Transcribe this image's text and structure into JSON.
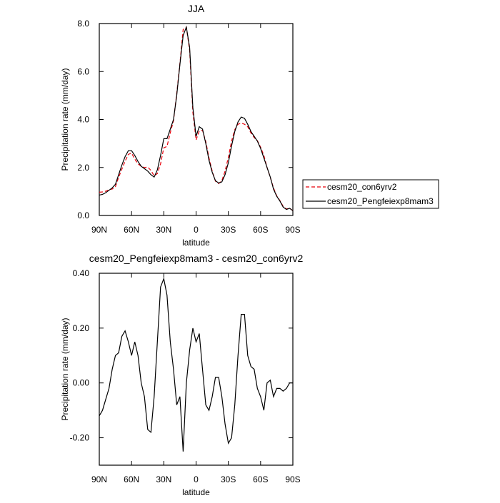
{
  "chart_data": [
    {
      "type": "line",
      "title": "JJA",
      "xlabel": "latitude",
      "ylabel": "Precipitation rate (mm/day)",
      "x": [
        90,
        87,
        84,
        81,
        78,
        75,
        72,
        69,
        66,
        63,
        60,
        57,
        54,
        51,
        48,
        45,
        42,
        39,
        36,
        33,
        30,
        27,
        24,
        21,
        18,
        15,
        12,
        9,
        6,
        3,
        0,
        -3,
        -6,
        -9,
        -12,
        -15,
        -18,
        -21,
        -24,
        -27,
        -30,
        -33,
        -36,
        -39,
        -42,
        -45,
        -48,
        -51,
        -54,
        -57,
        -60,
        -63,
        -66,
        -69,
        -72,
        -75,
        -78,
        -81,
        -84,
        -87,
        -90
      ],
      "series": [
        {
          "name": "cesm20_con6yrv2",
          "color": "#e8000b",
          "line_style": "dashed",
          "values": [
            0.97,
            0.98,
            1.01,
            1.07,
            1.1,
            1.2,
            1.59,
            1.93,
            2.26,
            2.55,
            2.6,
            2.35,
            2.15,
            2.05,
            2.0,
            2.02,
            1.88,
            1.65,
            1.75,
            2.15,
            2.82,
            2.88,
            3.45,
            3.95,
            5.08,
            6.35,
            7.75,
            7.85,
            6.88,
            4.3,
            3.15,
            3.52,
            3.55,
            3.08,
            2.4,
            1.85,
            1.43,
            1.33,
            1.45,
            1.85,
            2.42,
            3.1,
            3.58,
            3.8,
            3.85,
            3.8,
            3.7,
            3.44,
            3.25,
            3.12,
            2.85,
            2.5,
            2.0,
            1.59,
            1.15,
            0.82,
            0.62,
            0.38,
            0.27,
            0.3,
            0.2
          ]
        },
        {
          "name": "cesm20_Pengfeiexp8mam3",
          "color": "#000000",
          "line_style": "solid",
          "values": [
            0.85,
            0.88,
            0.95,
            1.05,
            1.15,
            1.3,
            1.7,
            2.1,
            2.45,
            2.7,
            2.7,
            2.5,
            2.25,
            2.05,
            1.95,
            1.85,
            1.7,
            1.6,
            1.9,
            2.5,
            3.2,
            3.2,
            3.6,
            4.0,
            5.0,
            6.3,
            7.5,
            7.85,
            7.0,
            4.5,
            3.3,
            3.7,
            3.6,
            3.0,
            2.3,
            1.8,
            1.45,
            1.35,
            1.4,
            1.7,
            2.2,
            2.9,
            3.5,
            3.9,
            4.1,
            4.05,
            3.8,
            3.5,
            3.3,
            3.1,
            2.8,
            2.4,
            2.0,
            1.6,
            1.1,
            0.8,
            0.6,
            0.35,
            0.25,
            0.3,
            0.2
          ]
        }
      ],
      "xlim": [
        90,
        -90
      ],
      "xticks": [
        {
          "value": 90,
          "label": "90N"
        },
        {
          "value": 60,
          "label": "60N"
        },
        {
          "value": 30,
          "label": "30N"
        },
        0,
        {
          "value": -30,
          "label": "30S"
        },
        {
          "value": -60,
          "label": "60S"
        },
        {
          "value": -90,
          "label": "90S"
        }
      ],
      "ylim": [
        0,
        8
      ],
      "yticks": [
        {
          "value": 0,
          "label": "0.0"
        },
        {
          "value": 2,
          "label": "2.0"
        },
        {
          "value": 4,
          "label": "4.0"
        },
        {
          "value": 6,
          "label": "6.0"
        },
        {
          "value": 8,
          "label": "8.0"
        }
      ],
      "legend": "right"
    },
    {
      "type": "line",
      "title": "cesm20_Pengfeiexp8mam3 - cesm20_con6yrv2",
      "xlabel": "latitude",
      "ylabel": "Precipitation rate (mm/day)",
      "x": [
        90,
        87,
        84,
        81,
        78,
        75,
        72,
        69,
        66,
        63,
        60,
        57,
        54,
        51,
        48,
        45,
        42,
        39,
        36,
        33,
        30,
        27,
        24,
        21,
        18,
        15,
        12,
        9,
        6,
        3,
        0,
        -3,
        -6,
        -9,
        -12,
        -15,
        -18,
        -21,
        -24,
        -27,
        -30,
        -33,
        -36,
        -39,
        -42,
        -45,
        -48,
        -51,
        -54,
        -57,
        -60,
        -63,
        -66,
        -69,
        -72,
        -75,
        -78,
        -81,
        -84,
        -87,
        -90
      ],
      "values": [
        -0.12,
        -0.1,
        -0.06,
        -0.02,
        0.05,
        0.1,
        0.11,
        0.17,
        0.19,
        0.15,
        0.1,
        0.15,
        0.1,
        0.0,
        -0.05,
        -0.17,
        -0.18,
        -0.05,
        0.15,
        0.35,
        0.38,
        0.32,
        0.15,
        0.05,
        -0.08,
        -0.05,
        -0.25,
        0.0,
        0.12,
        0.2,
        0.15,
        0.18,
        0.05,
        -0.08,
        -0.1,
        -0.05,
        0.02,
        0.02,
        -0.05,
        -0.15,
        -0.22,
        -0.2,
        -0.08,
        0.1,
        0.25,
        0.25,
        0.1,
        0.06,
        0.05,
        -0.02,
        -0.05,
        -0.1,
        0.0,
        0.01,
        -0.05,
        -0.02,
        -0.02,
        -0.03,
        -0.02,
        0.0,
        0.0
      ],
      "color": "#000000",
      "xlim": [
        90,
        -90
      ],
      "xticks": [
        {
          "value": 90,
          "label": "90N"
        },
        {
          "value": 60,
          "label": "60N"
        },
        {
          "value": 30,
          "label": "30N"
        },
        0,
        {
          "value": -30,
          "label": "30S"
        },
        {
          "value": -60,
          "label": "60S"
        },
        {
          "value": -90,
          "label": "90S"
        }
      ],
      "ylim": [
        -0.3,
        0.4
      ],
      "yticks": [
        {
          "value": -0.2,
          "label": "-0.20"
        },
        {
          "value": 0,
          "label": "0.00"
        },
        {
          "value": 0.2,
          "label": "0.20"
        },
        {
          "value": 0.4,
          "label": "0.40"
        }
      ]
    }
  ]
}
